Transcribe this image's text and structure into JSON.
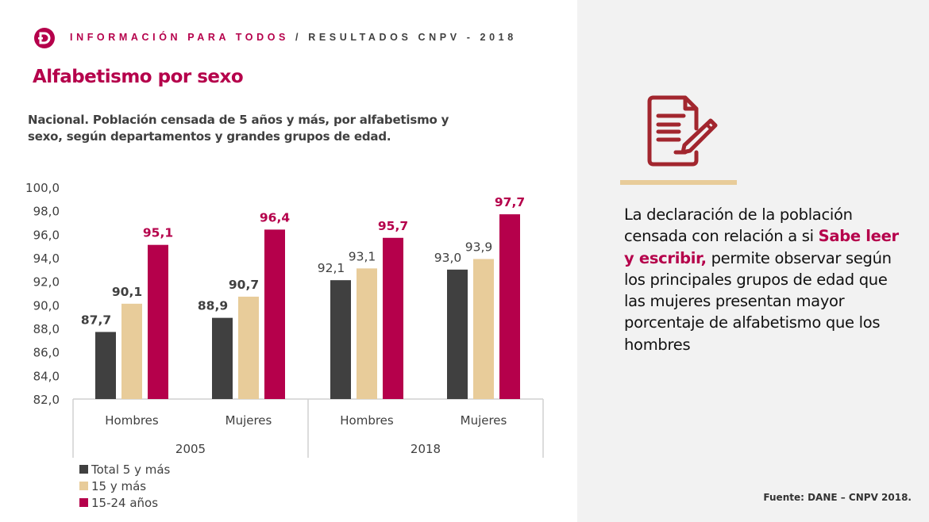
{
  "header": {
    "part1": "INFORMACIÓN PARA TODOS",
    "separator": " / ",
    "part2": "RESULTADOS CNPV - 2018",
    "logo_icon": "dane-logo-icon"
  },
  "title": "Alfabetismo por sexo",
  "subtitle": "Nacional. Población censada de 5 años y más, por alfabetismo y sexo, según departamentos y grandes grupos de edad.",
  "colors": {
    "brand": "#b5004b",
    "total": "#404040",
    "age15": "#e8cc9a",
    "age15_24": "#b5004b",
    "panel": "#f2f2f2"
  },
  "chart_data": {
    "type": "bar",
    "title": "Nacional. Población censada de 5 años y más, por alfabetismo y sexo, según departamentos y grandes grupos de edad.",
    "xlabel": "",
    "ylabel": "",
    "ylim": [
      82,
      100
    ],
    "yticks": [
      "100,0",
      "98,0",
      "96,0",
      "94,0",
      "92,0",
      "90,0",
      "88,0",
      "86,0",
      "84,0",
      "82,0"
    ],
    "ytick_values": [
      100,
      98,
      96,
      94,
      92,
      90,
      88,
      86,
      84,
      82
    ],
    "groups": [
      "2005",
      "2018"
    ],
    "categories": [
      "Hombres",
      "Mujeres",
      "Hombres",
      "Mujeres"
    ],
    "category_group": [
      "2005",
      "2005",
      "2018",
      "2018"
    ],
    "series": [
      {
        "name": "Total 5 y más",
        "color": "#404040",
        "values": [
          87.7,
          88.9,
          92.1,
          93.0
        ],
        "labels": [
          "87,7",
          "88,9",
          "92,1",
          "93,0"
        ]
      },
      {
        "name": "15 y más",
        "color": "#e8cc9a",
        "values": [
          90.1,
          90.7,
          93.1,
          93.9
        ],
        "labels": [
          "90,1",
          "90,7",
          "93,1",
          "93,9"
        ]
      },
      {
        "name": "15-24 años",
        "color": "#b5004b",
        "values": [
          95.1,
          96.4,
          95.7,
          97.7
        ],
        "labels": [
          "95,1",
          "96,4",
          "95,7",
          "97,7"
        ]
      }
    ],
    "grid": false,
    "legend_position": "bottom-left"
  },
  "legend": [
    {
      "label": "Total 5 y más",
      "color": "#404040"
    },
    {
      "label": "15 y más",
      "color": "#e8cc9a"
    },
    {
      "label": "15-24 años",
      "color": "#b5004b"
    }
  ],
  "side_panel": {
    "icon": "document-edit-icon",
    "text_before": "La declaración de la población censada con relación a si ",
    "text_highlight": "Sabe leer y escribir,",
    "text_after": " permite observar según los principales grupos de edad que las mujeres presentan mayor porcentaje de alfabetismo que los hombres"
  },
  "source": "Fuente: DANE – CNPV 2018."
}
